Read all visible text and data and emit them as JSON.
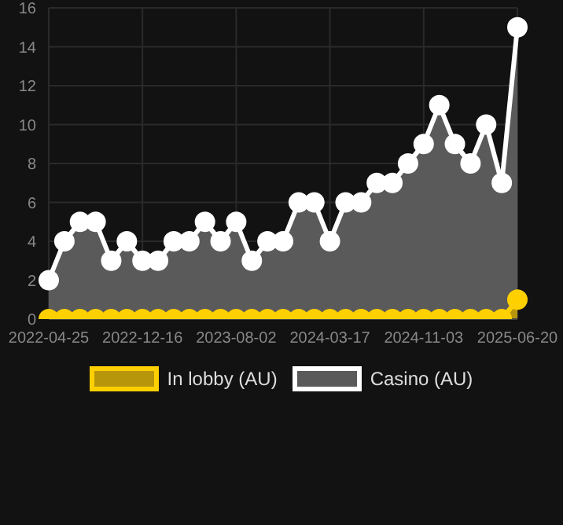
{
  "chart_data": {
    "type": "area",
    "categories": [
      "2022-04-25",
      null,
      null,
      null,
      null,
      null,
      "2022-12-16",
      null,
      null,
      null,
      null,
      null,
      "2023-08-02",
      null,
      null,
      null,
      null,
      null,
      "2024-03-17",
      null,
      null,
      null,
      null,
      null,
      "2024-11-03",
      null,
      null,
      null,
      null,
      null,
      "2025-06-20"
    ],
    "series": [
      {
        "name": "In lobby (AU)",
        "color": "#ffd000",
        "values": [
          0,
          0,
          0,
          0,
          0,
          0,
          0,
          0,
          0,
          0,
          0,
          0,
          0,
          0,
          0,
          0,
          0,
          0,
          0,
          0,
          0,
          0,
          0,
          0,
          0,
          0,
          0,
          0,
          0,
          0,
          1
        ]
      },
      {
        "name": "Casino (AU)",
        "color": "#ffffff",
        "values": [
          2,
          4,
          5,
          5,
          3,
          4,
          3,
          3,
          4,
          4,
          5,
          4,
          5,
          3,
          4,
          4,
          6,
          6,
          4,
          6,
          6,
          7,
          7,
          8,
          9,
          11,
          9,
          8,
          10,
          7,
          15
        ]
      }
    ],
    "ylim": [
      0,
      16
    ],
    "yticks": [
      0,
      2,
      4,
      6,
      8,
      10,
      12,
      14,
      16
    ],
    "grid": true,
    "legend": "bottom",
    "marker": "circle"
  }
}
